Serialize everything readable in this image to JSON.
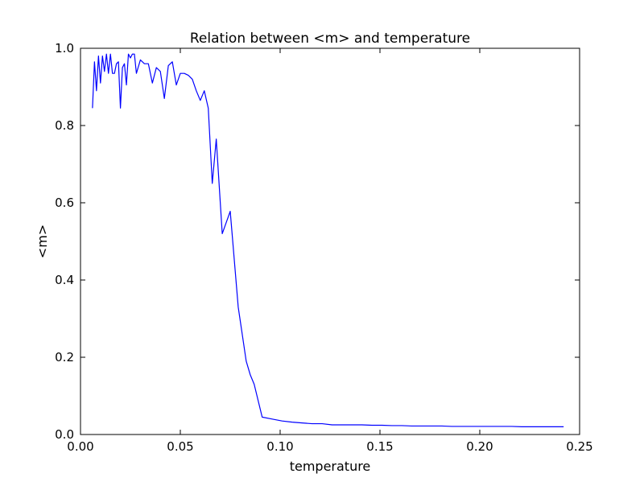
{
  "chart_data": {
    "type": "line",
    "title": "Relation between <m> and temperature",
    "xlabel": "temperature",
    "ylabel": "<m>",
    "xlim": [
      0.0,
      0.25
    ],
    "ylim": [
      0.0,
      1.0
    ],
    "xticks": [
      0.0,
      0.05,
      0.1,
      0.15,
      0.2,
      0.25
    ],
    "xtick_labels": [
      "0.00",
      "0.05",
      "0.10",
      "0.15",
      "0.20",
      "0.25"
    ],
    "yticks": [
      0.0,
      0.2,
      0.4,
      0.6,
      0.8,
      1.0
    ],
    "ytick_labels": [
      "0.0",
      "0.2",
      "0.4",
      "0.6",
      "0.8",
      "1.0"
    ],
    "grid": false,
    "line_color": "#0000ff",
    "x": [
      0.006,
      0.007,
      0.008,
      0.009,
      0.01,
      0.011,
      0.012,
      0.013,
      0.014,
      0.015,
      0.016,
      0.017,
      0.018,
      0.019,
      0.02,
      0.021,
      0.022,
      0.023,
      0.024,
      0.025,
      0.026,
      0.027,
      0.028,
      0.03,
      0.032,
      0.034,
      0.036,
      0.038,
      0.04,
      0.042,
      0.044,
      0.046,
      0.048,
      0.05,
      0.052,
      0.054,
      0.056,
      0.058,
      0.06,
      0.062,
      0.064,
      0.066,
      0.068,
      0.071,
      0.075,
      0.079,
      0.083,
      0.085,
      0.087,
      0.091,
      0.096,
      0.101,
      0.106,
      0.111,
      0.116,
      0.121,
      0.126,
      0.131,
      0.136,
      0.141,
      0.146,
      0.151,
      0.156,
      0.161,
      0.166,
      0.171,
      0.176,
      0.181,
      0.186,
      0.191,
      0.196,
      0.201,
      0.206,
      0.211,
      0.216,
      0.221,
      0.226,
      0.231,
      0.236,
      0.242
    ],
    "y": [
      0.845,
      0.965,
      0.89,
      0.98,
      0.91,
      0.98,
      0.94,
      0.985,
      0.935,
      0.985,
      0.935,
      0.935,
      0.96,
      0.965,
      0.845,
      0.95,
      0.96,
      0.905,
      0.985,
      0.975,
      0.985,
      0.985,
      0.935,
      0.97,
      0.96,
      0.96,
      0.91,
      0.95,
      0.94,
      0.87,
      0.955,
      0.965,
      0.905,
      0.935,
      0.935,
      0.93,
      0.92,
      0.89,
      0.865,
      0.89,
      0.845,
      0.65,
      0.765,
      0.52,
      0.578,
      0.33,
      0.19,
      0.155,
      0.13,
      0.045,
      0.04,
      0.035,
      0.032,
      0.03,
      0.028,
      0.028,
      0.025,
      0.025,
      0.025,
      0.025,
      0.024,
      0.024,
      0.023,
      0.023,
      0.022,
      0.022,
      0.022,
      0.022,
      0.021,
      0.021,
      0.021,
      0.021,
      0.021,
      0.021,
      0.021,
      0.02,
      0.02,
      0.02,
      0.02,
      0.02
    ]
  }
}
